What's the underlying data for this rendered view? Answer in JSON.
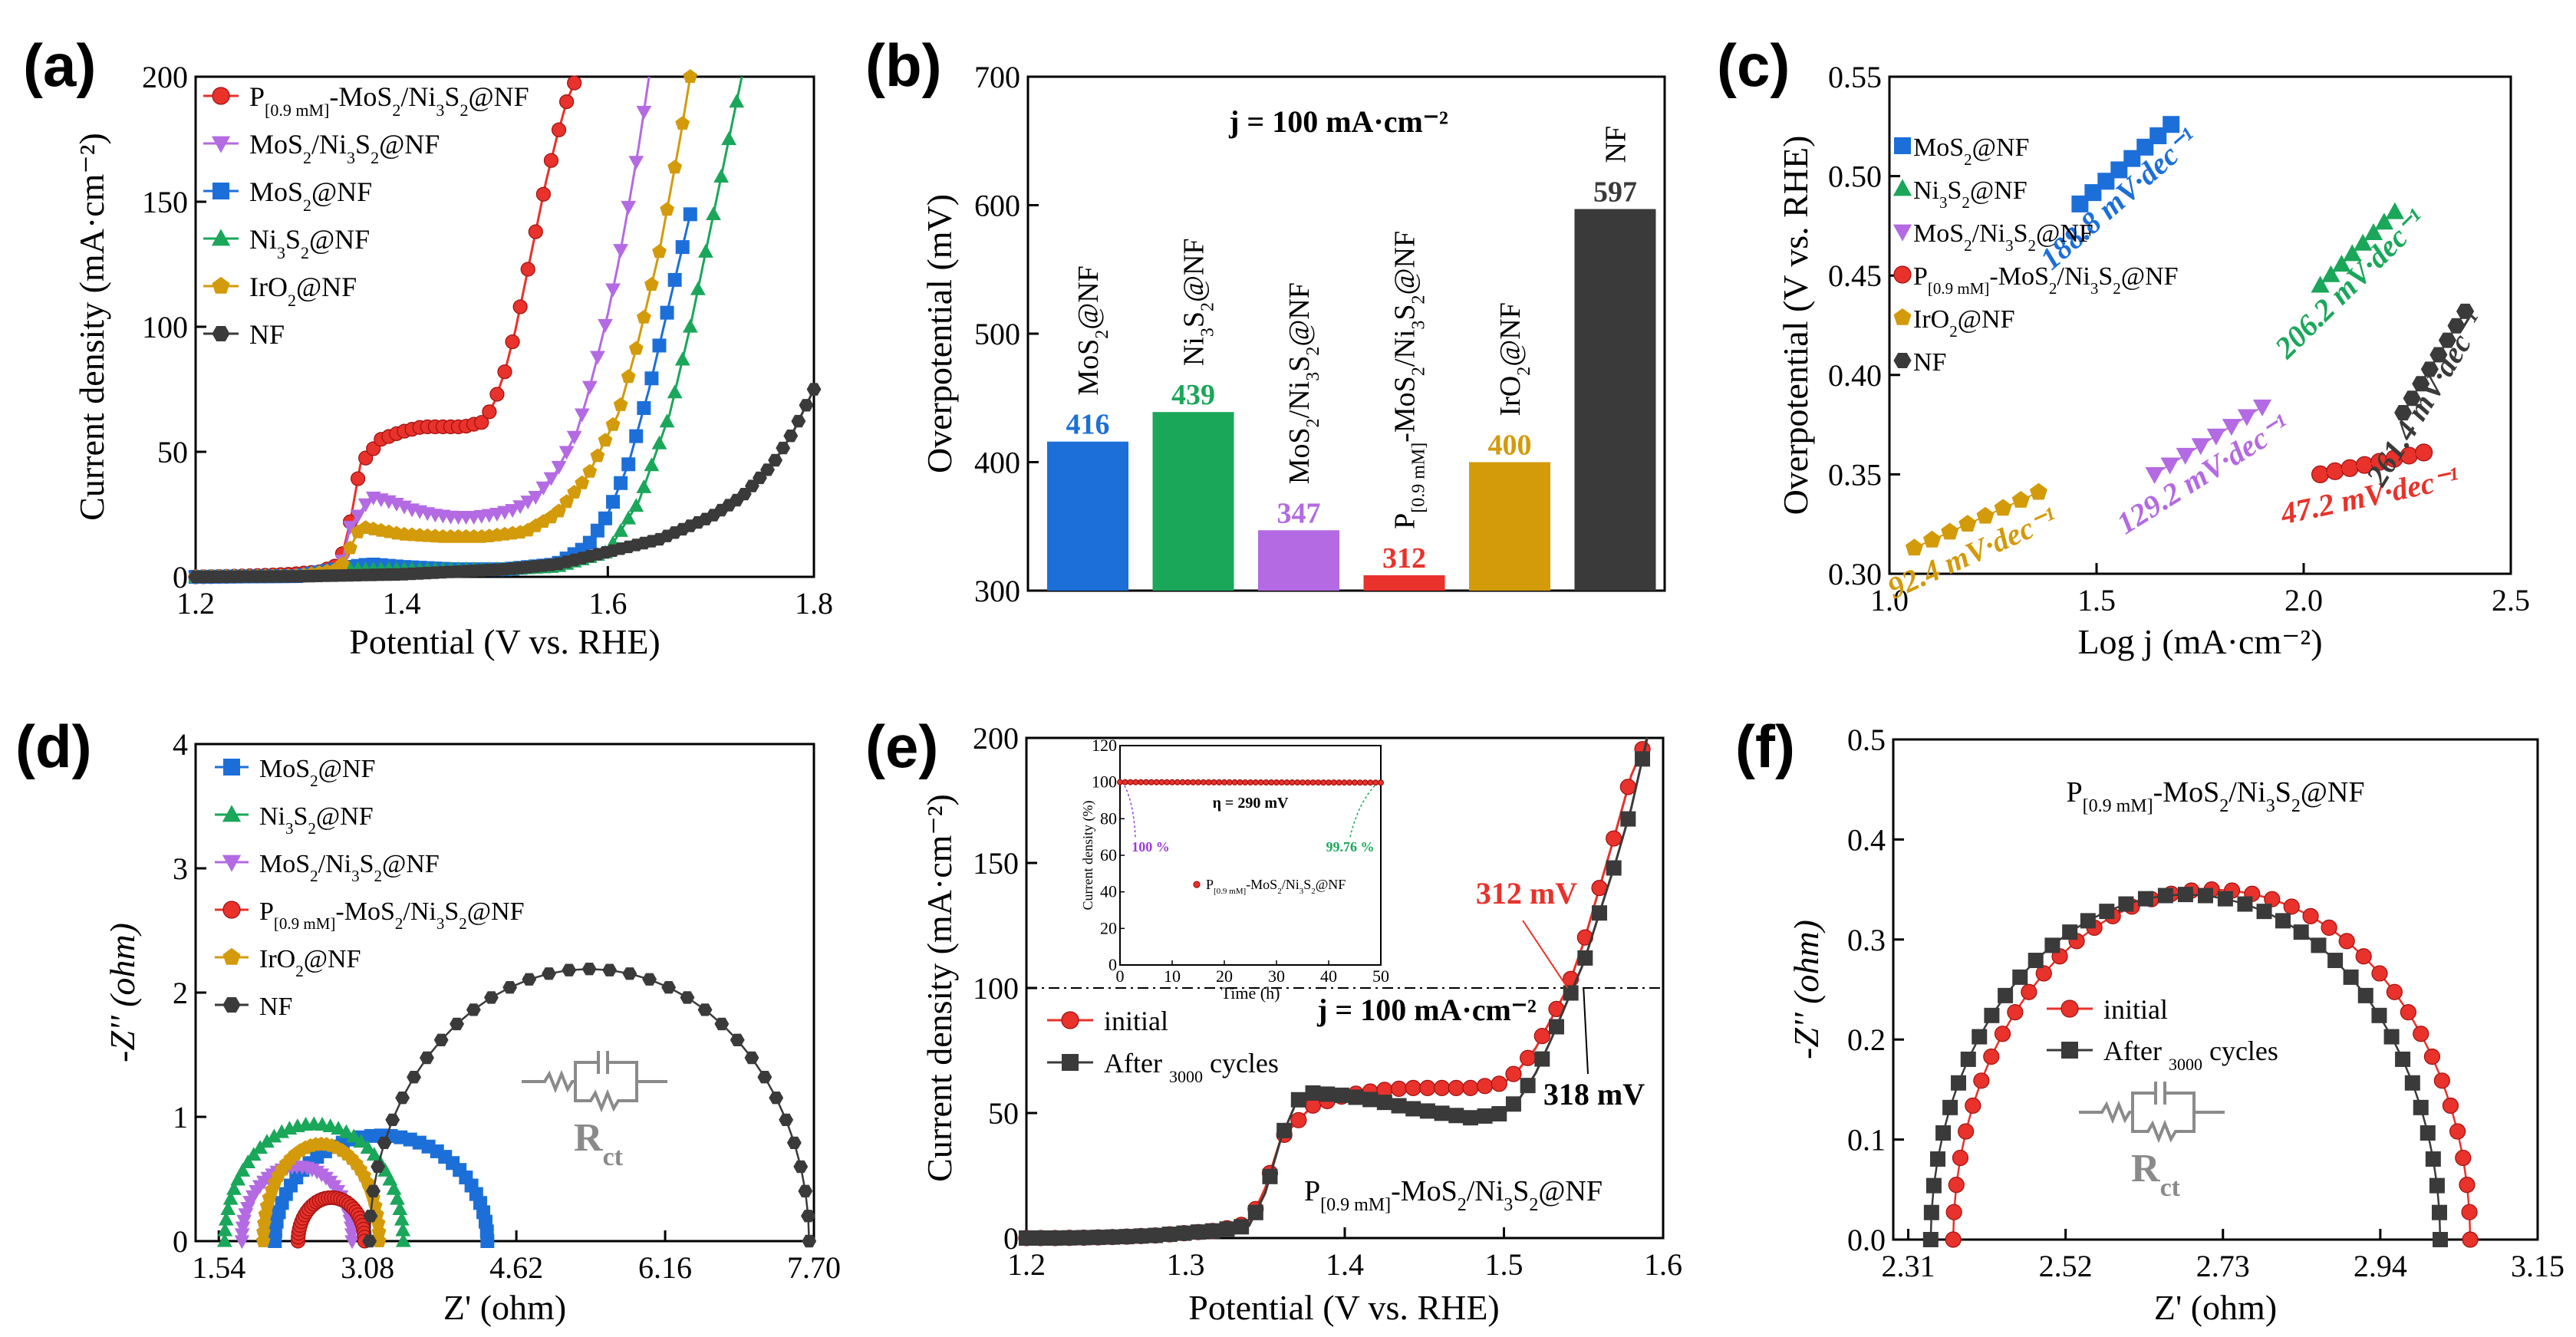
{
  "chart_data": [
    {
      "panel": "(a)",
      "type": "line",
      "xlabel": "Potential (V vs. RHE)",
      "ylabel": "Current density (mA·cm⁻²)",
      "xlim": [
        1.2,
        1.8
      ],
      "ylim": [
        0,
        200
      ],
      "xticks": [
        "1.2",
        "1.4",
        "1.6",
        "1.8"
      ],
      "yticks": [
        "0",
        "50",
        "100",
        "150",
        "200"
      ],
      "legend_position": "top-left",
      "series": [
        {
          "name": "P[0.9 mM]-MoS2/Ni3S2@NF",
          "name_main": "P",
          "name_sub": "[0.9 mM]",
          "name_tail": "-MoS",
          "name_tail2": "/Ni",
          "name_tail3": "S",
          "name_tail4": "@NF",
          "color": "#e8322b",
          "marker": "circle",
          "x": [
            1.2,
            1.23,
            1.26,
            1.29,
            1.32,
            1.34,
            1.35,
            1.36,
            1.38,
            1.4,
            1.42,
            1.44,
            1.46,
            1.48,
            1.49,
            1.5,
            1.51,
            1.52,
            1.53,
            1.54,
            1.55,
            1.56,
            1.57
          ],
          "y": [
            0,
            0.2,
            0.5,
            1,
            2,
            5,
            22,
            45,
            55,
            58,
            60,
            60,
            60,
            62,
            70,
            82,
            98,
            118,
            138,
            158,
            175,
            190,
            200
          ]
        },
        {
          "name": "MoS2/Ni3S2@NF",
          "color": "#b36ae2",
          "marker": "triangle-down",
          "x": [
            1.2,
            1.3,
            1.34,
            1.35,
            1.37,
            1.39,
            1.41,
            1.43,
            1.45,
            1.47,
            1.49,
            1.51,
            1.53,
            1.55,
            1.57,
            1.58,
            1.59,
            1.6,
            1.61,
            1.62,
            1.63,
            1.64
          ],
          "y": [
            0,
            0.5,
            2,
            20,
            32,
            30,
            27,
            25,
            24,
            24,
            25,
            27,
            32,
            42,
            58,
            72,
            88,
            105,
            125,
            148,
            172,
            200
          ]
        },
        {
          "name": "MoS2@NF",
          "color": "#1c6fd9",
          "marker": "square",
          "x": [
            1.2,
            1.3,
            1.35,
            1.37,
            1.4,
            1.45,
            1.5,
            1.55,
            1.58,
            1.6,
            1.62,
            1.64,
            1.66,
            1.68
          ],
          "y": [
            0,
            0.3,
            4,
            5,
            4,
            3,
            3,
            5,
            12,
            25,
            45,
            75,
            110,
            145
          ]
        },
        {
          "name": "Ni3S2@NF",
          "color": "#1aa75a",
          "marker": "triangle-up",
          "x": [
            1.2,
            1.3,
            1.35,
            1.4,
            1.45,
            1.5,
            1.55,
            1.6,
            1.63,
            1.66,
            1.68,
            1.7,
            1.72,
            1.73
          ],
          "y": [
            0,
            0.2,
            3,
            3,
            3,
            3,
            4,
            10,
            30,
            65,
            100,
            140,
            180,
            200
          ]
        },
        {
          "name": "IrO2@NF",
          "color": "#d39a0a",
          "marker": "pentagon",
          "x": [
            1.2,
            1.3,
            1.34,
            1.36,
            1.4,
            1.44,
            1.48,
            1.52,
            1.55,
            1.58,
            1.61,
            1.63,
            1.65,
            1.67,
            1.68
          ],
          "y": [
            0,
            0.3,
            3,
            20,
            17,
            16,
            16,
            18,
            25,
            40,
            65,
            95,
            130,
            175,
            200
          ]
        },
        {
          "name": "NF",
          "color": "#3a3a3a",
          "marker": "hexagon",
          "x": [
            1.2,
            1.3,
            1.4,
            1.45,
            1.5,
            1.55,
            1.6,
            1.65,
            1.7,
            1.73,
            1.76,
            1.78,
            1.8
          ],
          "y": [
            0,
            0.2,
            1,
            2,
            3,
            5,
            10,
            15,
            24,
            32,
            45,
            58,
            75
          ]
        }
      ]
    },
    {
      "panel": "(b)",
      "type": "bar",
      "title": "j = 100 mA·cm⁻²",
      "ylabel": "Overpotential (mV)",
      "ylim": [
        300,
        700
      ],
      "yticks": [
        "300",
        "400",
        "500",
        "600",
        "700"
      ],
      "categories": [
        "MoS2@NF",
        "Ni3S2@NF",
        "MoS2/Ni3S2@NF",
        "P[0.9 mM]-MoS2/Ni3S2@NF",
        "IrO2@NF",
        "NF"
      ],
      "values": [
        416,
        439,
        347,
        312,
        400,
        597
      ],
      "value_labels": [
        "416",
        "439",
        "347",
        "312",
        "400",
        "597"
      ],
      "colors": [
        "#1c6fd9",
        "#1aa75a",
        "#b36ae2",
        "#e8322b",
        "#d39a0a",
        "#3a3a3a"
      ]
    },
    {
      "panel": "(c)",
      "type": "scatter",
      "xlabel": "Log j (mA·cm⁻²)",
      "ylabel": "Overpotential (V vs. RHE)",
      "xlim": [
        1.0,
        2.5
      ],
      "ylim": [
        0.3,
        0.55
      ],
      "xticks": [
        "1.0",
        "1.5",
        "2.0",
        "2.5"
      ],
      "yticks": [
        "0.30",
        "0.35",
        "0.40",
        "0.45",
        "0.50",
        "0.55"
      ],
      "series": [
        {
          "name": "MoS2@NF",
          "color": "#1c6fd9",
          "marker": "square",
          "slope": "188.8 mV·dec⁻¹",
          "x_range": [
            1.46,
            1.68
          ],
          "y_range": [
            0.486,
            0.526
          ]
        },
        {
          "name": "Ni3S2@NF",
          "color": "#1aa75a",
          "marker": "triangle-up",
          "slope": "206.2 mV·dec⁻¹",
          "x_range": [
            2.04,
            2.22
          ],
          "y_range": [
            0.445,
            0.482
          ]
        },
        {
          "name": "MoS2/Ni3S2@NF",
          "color": "#b36ae2",
          "marker": "triangle-down",
          "slope": "129.2 mV·dec⁻¹",
          "x_range": [
            1.64,
            1.9
          ],
          "y_range": [
            0.35,
            0.384
          ]
        },
        {
          "name": "P[0.9 mM]-MoS2/Ni3S2@NF",
          "color": "#e8322b",
          "marker": "circle",
          "slope": "47.2 mV·dec⁻¹",
          "x_range": [
            2.04,
            2.29
          ],
          "y_range": [
            0.35,
            0.361
          ]
        },
        {
          "name": "IrO2@NF",
          "color": "#d39a0a",
          "marker": "pentagon",
          "slope": "92.4 mV·dec⁻¹",
          "x_range": [
            1.06,
            1.36
          ],
          "y_range": [
            0.313,
            0.341
          ]
        },
        {
          "name": "NF",
          "color": "#3a3a3a",
          "marker": "hexagon",
          "slope": "261.4 mV·dec⁻¹",
          "x_range": [
            2.24,
            2.39
          ],
          "y_range": [
            0.381,
            0.432
          ]
        }
      ]
    },
    {
      "panel": "(d)",
      "type": "scatter",
      "xlabel": "Z' (ohm)",
      "ylabel": "-Z'' (ohm)",
      "xlim": [
        1.3,
        7.7
      ],
      "ylim": [
        0,
        4
      ],
      "xticks": [
        "1.54",
        "3.08",
        "4.62",
        "6.16",
        "7.70"
      ],
      "yticks": [
        "0",
        "1",
        "2",
        "3",
        "4"
      ],
      "inset_label": "Rct",
      "series": [
        {
          "name": "MoS2@NF",
          "color": "#1c6fd9",
          "marker": "square",
          "arc_start": 2.12,
          "arc_end": 4.32,
          "peak": 0.85
        },
        {
          "name": "Ni3S2@NF",
          "color": "#1aa75a",
          "marker": "triangle-up",
          "arc_start": 1.6,
          "arc_end": 3.45,
          "peak": 0.94
        },
        {
          "name": "MoS2/Ni3S2@NF",
          "color": "#b36ae2",
          "marker": "triangle-down",
          "arc_start": 1.78,
          "arc_end": 2.92,
          "peak": 0.6
        },
        {
          "name": "P[0.9 mM]-MoS2/Ni3S2@NF",
          "color": "#e8322b",
          "marker": "circle",
          "arc_start": 2.36,
          "arc_end": 3.05,
          "peak": 0.35
        },
        {
          "name": "IrO2@NF",
          "color": "#d39a0a",
          "marker": "pentagon",
          "arc_start": 2.0,
          "arc_end": 3.2,
          "peak": 0.78
        },
        {
          "name": "NF",
          "color": "#3a3a3a",
          "marker": "hexagon",
          "arc_start": 3.1,
          "arc_end": 7.65,
          "peak": 2.19
        }
      ]
    },
    {
      "panel": "(e)",
      "type": "line",
      "xlabel": "Potential (V vs. RHE)",
      "ylabel": "Current density (mA·cm⁻²)",
      "xlim": [
        1.2,
        1.6
      ],
      "ylim": [
        0,
        200
      ],
      "xticks": [
        "1.2",
        "1.3",
        "1.4",
        "1.5",
        "1.6"
      ],
      "yticks": [
        "0",
        "50",
        "100",
        "150",
        "200"
      ],
      "annotation_j": "j = 100 mA·cm⁻²",
      "annotation_initial": "312 mV",
      "annotation_after": "318 mV",
      "sample_label": "P[0.9 mM]-MoS2/Ni3S2@NF",
      "series": [
        {
          "name": "initial",
          "color": "#e8322b",
          "marker": "circle",
          "x": [
            1.2,
            1.22,
            1.24,
            1.26,
            1.28,
            1.3,
            1.32,
            1.34,
            1.35,
            1.36,
            1.38,
            1.4,
            1.42,
            1.44,
            1.46,
            1.48,
            1.5,
            1.51,
            1.52,
            1.53,
            1.54,
            1.55,
            1.56,
            1.57,
            1.58,
            1.59
          ],
          "y": [
            0,
            0,
            0.2,
            0.5,
            1,
            2,
            3,
            6,
            20,
            40,
            53,
            57,
            59,
            60,
            60,
            60,
            62,
            68,
            76,
            88,
            100,
            118,
            140,
            162,
            185,
            200
          ]
        },
        {
          "name": "After 3000 cycles",
          "color": "#3a3a3a",
          "marker": "square",
          "x": [
            1.2,
            1.22,
            1.24,
            1.26,
            1.28,
            1.3,
            1.32,
            1.34,
            1.35,
            1.36,
            1.37,
            1.38,
            1.4,
            1.42,
            1.44,
            1.46,
            1.48,
            1.5,
            1.51,
            1.52,
            1.53,
            1.54,
            1.55,
            1.56,
            1.57,
            1.58,
            1.59
          ],
          "y": [
            0,
            0,
            0.2,
            0.5,
            1,
            2,
            3,
            5,
            18,
            40,
            55,
            58,
            57,
            55,
            52,
            50,
            48,
            50,
            56,
            66,
            80,
            95,
            110,
            130,
            150,
            172,
            200
          ]
        }
      ],
      "inset": {
        "xlabel": "Time (h)",
        "ylabel": "Current density (%)",
        "xlim": [
          0,
          50
        ],
        "ylim": [
          0,
          120
        ],
        "xticks": [
          "0",
          "10",
          "20",
          "30",
          "40",
          "50"
        ],
        "yticks": [
          "0",
          "20",
          "40",
          "60",
          "80",
          "100",
          "120"
        ],
        "label_eta": "η = 290 mV",
        "label_start": "100 %",
        "label_end": "99.76 %",
        "legend": "P[0.9 mM]-MoS2/Ni3S2@NF",
        "values_start": 100,
        "values_end": 99.76
      }
    },
    {
      "panel": "(f)",
      "type": "scatter",
      "title": "P[0.9 mM]-MoS2/Ni3S2@NF",
      "xlabel": "Z' (ohm)",
      "ylabel": "-Z'' (ohm)",
      "xlim": [
        2.29,
        3.15
      ],
      "ylim": [
        0,
        0.5
      ],
      "xticks": [
        "2.31",
        "2.52",
        "2.73",
        "2.94",
        "3.15"
      ],
      "yticks": [
        "0.0",
        "0.1",
        "0.2",
        "0.3",
        "0.4",
        "0.5"
      ],
      "inset_label": "Rct",
      "series": [
        {
          "name": "initial",
          "color": "#e8322b",
          "marker": "circle",
          "arc_start": 2.37,
          "arc_end": 3.06,
          "peak": 0.35
        },
        {
          "name": "After 3000 cycles",
          "color": "#3a3a3a",
          "marker": "square",
          "arc_start": 2.34,
          "arc_end": 3.02,
          "peak": 0.345
        }
      ]
    }
  ]
}
